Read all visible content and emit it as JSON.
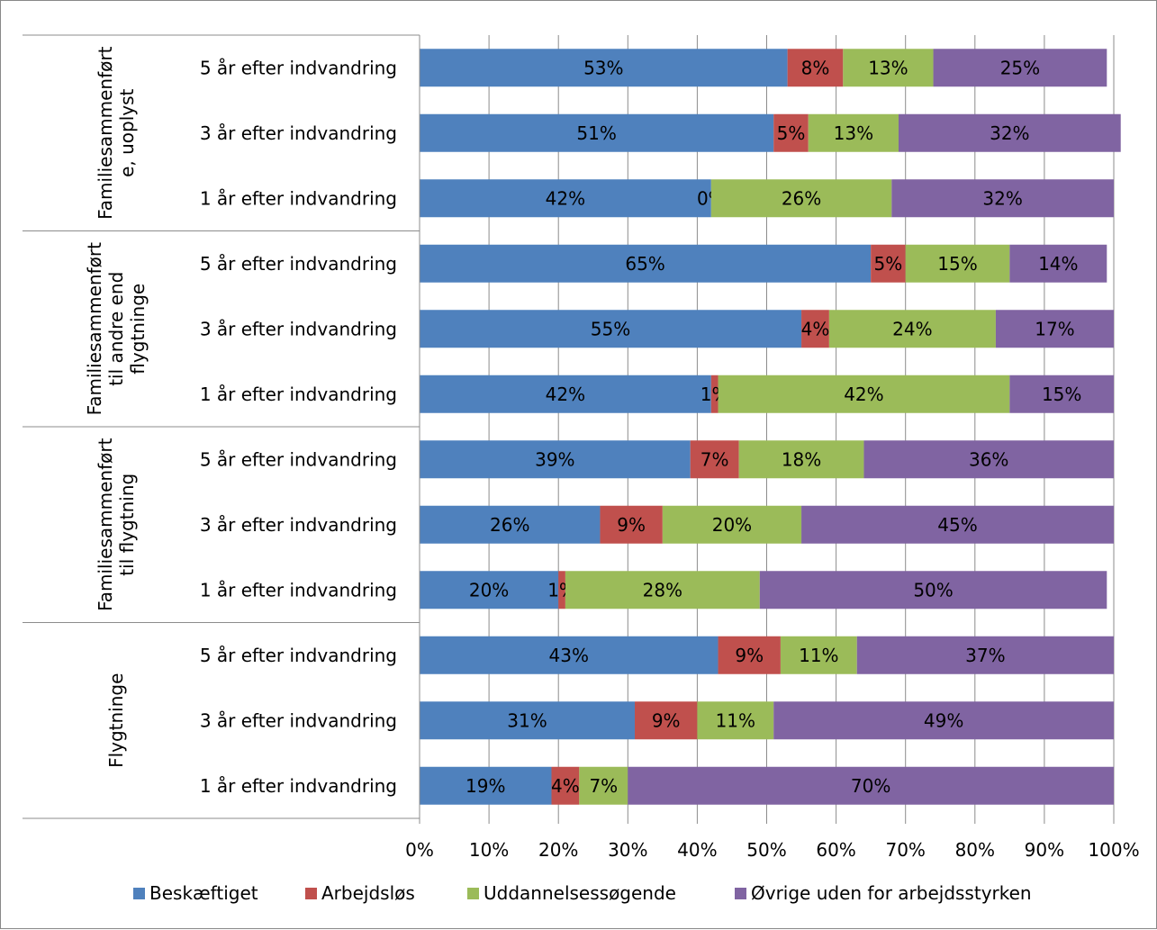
{
  "chart_data": {
    "type": "bar",
    "orientation": "horizontal",
    "stacked": "percent",
    "groups": [
      {
        "label_lines": [
          "Familiesammenført",
          "e, uoplyst"
        ],
        "rows": [
          {
            "label": "5 år efter indvandring",
            "values": [
              53,
              8,
              13,
              25
            ]
          },
          {
            "label": "3 år efter indvandring",
            "values": [
              51,
              5,
              13,
              32
            ]
          },
          {
            "label": "1 år efter indvandring",
            "values": [
              42,
              0,
              26,
              32
            ]
          }
        ]
      },
      {
        "label_lines": [
          "Familiesammenført",
          "til andre end",
          "flygtninge"
        ],
        "rows": [
          {
            "label": "5 år efter indvandring",
            "values": [
              65,
              5,
              15,
              14
            ]
          },
          {
            "label": "3 år efter indvandring",
            "values": [
              55,
              4,
              24,
              17
            ]
          },
          {
            "label": "1 år efter indvandring",
            "values": [
              42,
              1,
              42,
              15
            ]
          }
        ]
      },
      {
        "label_lines": [
          "Familiesammenført",
          "til flygtning"
        ],
        "rows": [
          {
            "label": "5 år efter indvandring",
            "values": [
              39,
              7,
              18,
              36
            ]
          },
          {
            "label": "3 år efter indvandring",
            "values": [
              26,
              9,
              20,
              45
            ]
          },
          {
            "label": "1 år efter indvandring",
            "values": [
              20,
              1,
              28,
              50
            ]
          }
        ]
      },
      {
        "label_lines": [
          "Flygtninge"
        ],
        "rows": [
          {
            "label": "5 år efter indvandring",
            "values": [
              43,
              9,
              11,
              37
            ]
          },
          {
            "label": "3 år efter indvandring",
            "values": [
              31,
              9,
              11,
              49
            ]
          },
          {
            "label": "1 år efter indvandring",
            "values": [
              19,
              4,
              7,
              70
            ]
          }
        ]
      }
    ],
    "series": [
      {
        "name": "Beskæftiget",
        "color": "#4F81BD"
      },
      {
        "name": "Arbejdsløs",
        "color": "#C0504D"
      },
      {
        "name": "Uddannelsessøgende",
        "color": "#9BBB59"
      },
      {
        "name": "Øvrige uden for arbejdsstyrken",
        "color": "#8064A2"
      }
    ],
    "x_ticks": [
      "0%",
      "10%",
      "20%",
      "30%",
      "40%",
      "50%",
      "60%",
      "70%",
      "80%",
      "90%",
      "100%"
    ],
    "xlim": [
      0,
      100
    ],
    "grid": "vertical",
    "legend_position": "bottom"
  }
}
